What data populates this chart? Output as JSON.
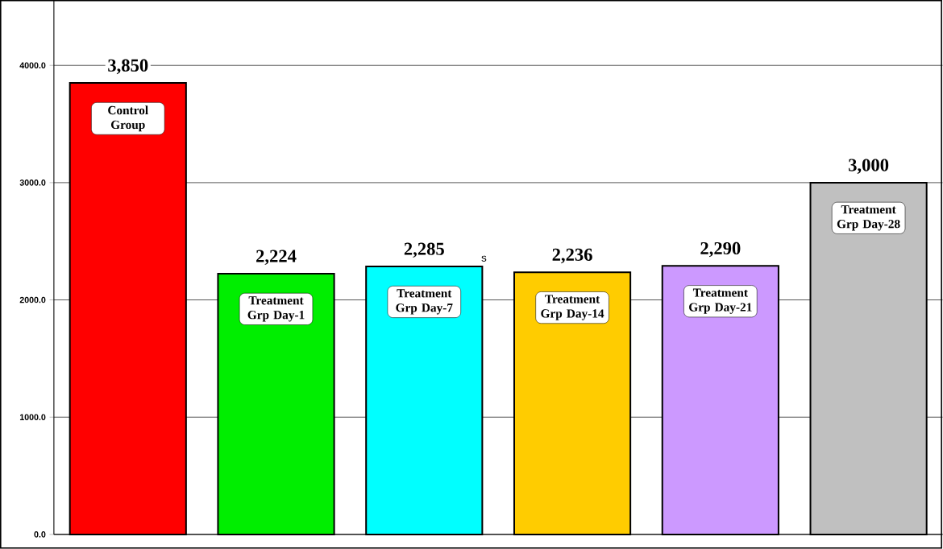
{
  "chart_data": {
    "type": "bar",
    "categories": [
      "Control Group",
      "Treatment Grp Day-1",
      "Treatment Grp Day-7",
      "Treatment Grp Day-14",
      "Treatment Grp Day-21",
      "Treatment Grp Day-28"
    ],
    "values": [
      3850,
      2224,
      2285,
      2236,
      2290,
      3000
    ],
    "colors": [
      "#ff0000",
      "#00ee00",
      "#00ffff",
      "#ffcc00",
      "#cc99ff",
      "#c0c0c0"
    ],
    "value_labels": [
      "3,850",
      "2,224",
      "2,285",
      "2,236",
      "2,290",
      "3,000"
    ],
    "ylim": [
      0,
      4550
    ],
    "yticks": [
      {
        "value": 0,
        "label": "0.0"
      },
      {
        "value": 1000,
        "label": "1000.0"
      },
      {
        "value": 2000,
        "label": "2000.0"
      },
      {
        "value": 3000,
        "label": "3000.0"
      },
      {
        "value": 4000,
        "label": "4000.0"
      }
    ],
    "grid": "y",
    "tick_labels": "y",
    "annotations": [
      "s"
    ]
  }
}
